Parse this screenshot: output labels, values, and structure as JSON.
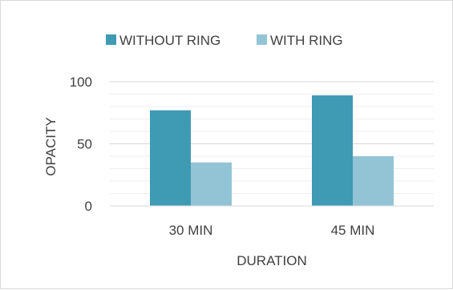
{
  "chart_data": {
    "type": "bar",
    "categories": [
      "30 MIN",
      "45 MIN"
    ],
    "series": [
      {
        "name": "WITHOUT RING",
        "values": [
          77,
          89
        ],
        "color": "#3f9ab3"
      },
      {
        "name": "WITH RING",
        "values": [
          35,
          40
        ],
        "color": "#93c4d6"
      }
    ],
    "xlabel": "DURATION",
    "ylabel": "OPACITY",
    "ylim": [
      0,
      100
    ],
    "yticks": [
      "0",
      "50",
      "100"
    ],
    "grid": true,
    "legend_position": "top"
  }
}
